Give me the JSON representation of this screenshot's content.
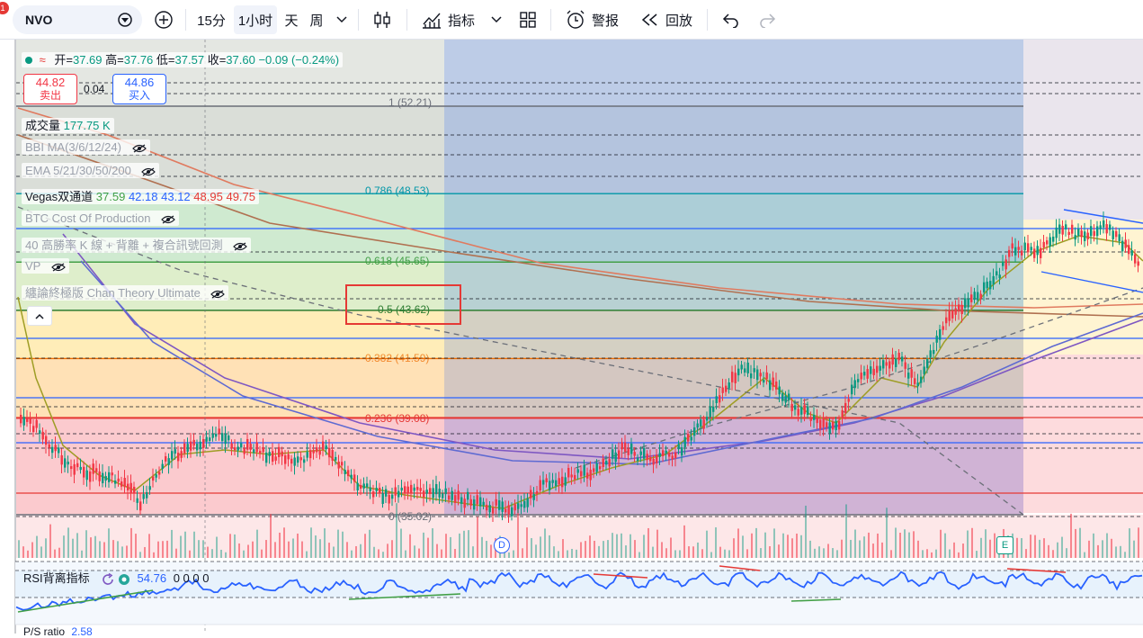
{
  "toolbar": {
    "symbol": "NVO",
    "notification_count": "1",
    "interval_15m": "15分",
    "interval_1h": "1小时",
    "interval_day": "天",
    "interval_week": "周",
    "indicators_label": "指标",
    "alert_label": "警报",
    "replay_label": "回放"
  },
  "legend": {
    "open_label": "开=",
    "open": "37.69",
    "high_label": "高=",
    "high": "37.76",
    "low_label": "低=",
    "low": "37.57",
    "close_label": "收=",
    "close": "37.60",
    "change": "−0.09 (−0.24%)",
    "sell_price": "44.82",
    "sell_label": "卖出",
    "spread": "0.04",
    "buy_price": "44.86",
    "buy_label": "买入",
    "volume_label": "成交量",
    "volume_value": "177.75 K",
    "bbi": "BBI MA(3/6/12/24)",
    "ema": "EMA 5/21/30/50/200",
    "vegas_label": "Vegas双通道",
    "vegas_values": [
      "37.59",
      "42.18",
      "43.12",
      "48.95",
      "49.75"
    ],
    "btc": "BTC Cost Of Production",
    "k40": "40 高勝率 K 線 + 背離 + 複合訊號回測",
    "vp": "VP",
    "chan": "纏論終極版 Chan Theory Ultimate"
  },
  "fib_labels": {
    "f1": "1 (52.21)",
    "f786": "0.786 (48.53)",
    "f618": "0.618 (45.65)",
    "f5": "0.5 (43.62)",
    "f382": "0.382 (41.59)",
    "f236": "0.236 (39.08)",
    "f0": "0 (35.02)"
  },
  "markers": {
    "d": "D",
    "e": "E"
  },
  "rsi": {
    "label": "RSI背离指标",
    "value": "54.76",
    "extras": "0 0 0 0"
  },
  "bottom": {
    "label": "P/S ratio",
    "value": "2.58"
  },
  "colors": {
    "up": "#089981",
    "down": "#f23645",
    "rsi": "#2962ff",
    "highlight": "#e53935"
  },
  "chart_data": {
    "type": "candlestick",
    "title": "NVO",
    "interval": "1小时",
    "last_bar": {
      "open": 37.69,
      "high": 37.76,
      "low": 37.57,
      "close": 37.6
    },
    "fibonacci_retracement": [
      {
        "level": 1,
        "price": 52.21
      },
      {
        "level": 0.786,
        "price": 48.53
      },
      {
        "level": 0.618,
        "price": 45.65
      },
      {
        "level": 0.5,
        "price": 43.62
      },
      {
        "level": 0.382,
        "price": 41.59
      },
      {
        "level": 0.236,
        "price": 39.08
      },
      {
        "level": 0,
        "price": 35.02
      }
    ],
    "price_range_visible": [
      34.0,
      56.0
    ],
    "rsi_value": 54.76,
    "highlighted_level": 0.5
  }
}
